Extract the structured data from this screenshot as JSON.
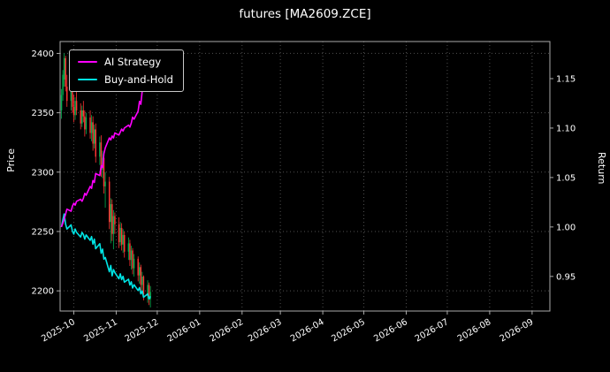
{
  "header": {
    "title": "futures [MA2609.ZCE]"
  },
  "legend": {
    "items": [
      {
        "label": "AI Strategy",
        "color": "#ff00ff"
      },
      {
        "label": "Buy-and-Hold",
        "color": "#00e5e5"
      }
    ]
  },
  "chart_data": {
    "type": "candlestick+line",
    "title": "futures [MA2609.ZCE]",
    "grid": true,
    "legend_position": "upper-left",
    "colors": {
      "background": "#000000",
      "text": "#ffffff",
      "grid": "#4f4f4f",
      "spine": "#aaaaaa",
      "candle_up": "#00b050",
      "candle_down": "#ff3333",
      "ai_strategy": "#ff00ff",
      "buy_and_hold": "#00e5e5"
    },
    "x_axis": {
      "domain": [
        "2025-09-21",
        "2026-09-14"
      ],
      "tick_dates": [
        "2025-10-01",
        "2025-11-01",
        "2025-12-01",
        "2026-01-01",
        "2026-02-01",
        "2026-03-01",
        "2026-04-01",
        "2026-05-01",
        "2026-06-01",
        "2026-07-01",
        "2026-08-01",
        "2026-09-01"
      ],
      "tick_labels": [
        "2025-10",
        "2025-11",
        "2025-12",
        "2026-01",
        "2026-02",
        "2026-03",
        "2026-04",
        "2026-05",
        "2026-06",
        "2026-07",
        "2026-08",
        "2026-09"
      ],
      "tick_rotation_deg": 30
    },
    "left_axis": {
      "label": "Price",
      "ticks": [
        2200,
        2250,
        2300,
        2350,
        2400
      ],
      "range": [
        2183,
        2410
      ]
    },
    "right_axis": {
      "label": "Return",
      "ticks": [
        0.95,
        1.0,
        1.05,
        1.1,
        1.15
      ],
      "range": [
        0.915,
        1.1875
      ]
    },
    "candles_format": [
      "date",
      "open",
      "high",
      "low",
      "close"
    ],
    "candles": [
      [
        "2025-09-22",
        2352,
        2370,
        2345,
        2365
      ],
      [
        "2025-09-23",
        2365,
        2386,
        2360,
        2382
      ],
      [
        "2025-09-24",
        2378,
        2400,
        2372,
        2396
      ],
      [
        "2025-09-25",
        2396,
        2398,
        2368,
        2372
      ],
      [
        "2025-09-26",
        2372,
        2382,
        2355,
        2360
      ],
      [
        "2025-09-29",
        2360,
        2374,
        2352,
        2370
      ],
      [
        "2025-09-30",
        2370,
        2376,
        2350,
        2355
      ],
      [
        "2025-10-01",
        2355,
        2365,
        2342,
        2348
      ],
      [
        "2025-10-02",
        2348,
        2363,
        2344,
        2360
      ],
      [
        "2025-10-03",
        2360,
        2368,
        2348,
        2352
      ],
      [
        "2025-10-06",
        2352,
        2358,
        2336,
        2341
      ],
      [
        "2025-10-07",
        2341,
        2356,
        2338,
        2352
      ],
      [
        "2025-10-08",
        2352,
        2360,
        2342,
        2347
      ],
      [
        "2025-10-09",
        2347,
        2352,
        2330,
        2336
      ],
      [
        "2025-10-10",
        2336,
        2350,
        2332,
        2346
      ],
      [
        "2025-10-13",
        2346,
        2352,
        2328,
        2333
      ],
      [
        "2025-10-14",
        2333,
        2348,
        2326,
        2342
      ],
      [
        "2025-10-15",
        2342,
        2347,
        2318,
        2324
      ],
      [
        "2025-10-16",
        2324,
        2340,
        2320,
        2336
      ],
      [
        "2025-10-17",
        2336,
        2341,
        2308,
        2313
      ],
      [
        "2025-10-20",
        2313,
        2330,
        2306,
        2325
      ],
      [
        "2025-10-21",
        2325,
        2331,
        2296,
        2302
      ],
      [
        "2025-10-22",
        2302,
        2318,
        2295,
        2312
      ],
      [
        "2025-10-23",
        2312,
        2317,
        2282,
        2288
      ],
      [
        "2025-10-24",
        2288,
        2300,
        2270,
        2292
      ],
      [
        "2025-10-27",
        2292,
        2296,
        2252,
        2258
      ],
      [
        "2025-10-28",
        2258,
        2278,
        2240,
        2273
      ],
      [
        "2025-10-29",
        2273,
        2277,
        2242,
        2248
      ],
      [
        "2025-10-30",
        2248,
        2268,
        2235,
        2263
      ],
      [
        "2025-10-31",
        2263,
        2266,
        2248,
        2256
      ],
      [
        "2025-11-03",
        2256,
        2262,
        2236,
        2241
      ],
      [
        "2025-11-04",
        2241,
        2258,
        2238,
        2253
      ],
      [
        "2025-11-05",
        2253,
        2257,
        2234,
        2239
      ],
      [
        "2025-11-06",
        2239,
        2252,
        2232,
        2247
      ],
      [
        "2025-11-07",
        2247,
        2250,
        2228,
        2233
      ],
      [
        "2025-11-10",
        2233,
        2245,
        2226,
        2240
      ],
      [
        "2025-11-11",
        2240,
        2243,
        2221,
        2226
      ],
      [
        "2025-11-12",
        2226,
        2238,
        2218,
        2234
      ],
      [
        "2025-11-13",
        2234,
        2236,
        2214,
        2219
      ],
      [
        "2025-11-14",
        2219,
        2231,
        2212,
        2227
      ],
      [
        "2025-11-17",
        2227,
        2229,
        2208,
        2213
      ],
      [
        "2025-11-18",
        2213,
        2224,
        2206,
        2220
      ],
      [
        "2025-11-19",
        2220,
        2222,
        2200,
        2205
      ],
      [
        "2025-11-20",
        2205,
        2216,
        2198,
        2212
      ],
      [
        "2025-11-21",
        2212,
        2213,
        2192,
        2197
      ],
      [
        "2025-11-24",
        2197,
        2209,
        2190,
        2205
      ],
      [
        "2025-11-25",
        2205,
        2207,
        2188,
        2193
      ],
      [
        "2025-11-26",
        2193,
        2204,
        2186,
        2199
      ]
    ],
    "series": [
      {
        "name": "AI Strategy",
        "axis": "right",
        "color": "#ff00ff",
        "values": [
          1.0,
          1.004,
          1.008,
          1.013,
          1.018,
          1.016,
          1.021,
          1.024,
          1.022,
          1.026,
          1.028,
          1.026,
          1.029,
          1.034,
          1.032,
          1.041,
          1.039,
          1.047,
          1.045,
          1.054,
          1.052,
          1.062,
          1.06,
          1.074,
          1.08,
          1.09,
          1.088,
          1.092,
          1.09,
          1.095,
          1.093,
          1.096,
          1.099,
          1.097,
          1.1,
          1.103,
          1.101,
          1.105,
          1.111,
          1.109,
          1.117,
          1.127,
          1.124,
          1.137,
          1.147,
          1.155,
          1.162,
          1.166
        ]
      },
      {
        "name": "Buy-and-Hold",
        "axis": "right",
        "color": "#00e5e5",
        "derivation": "close / first_close"
      }
    ]
  }
}
